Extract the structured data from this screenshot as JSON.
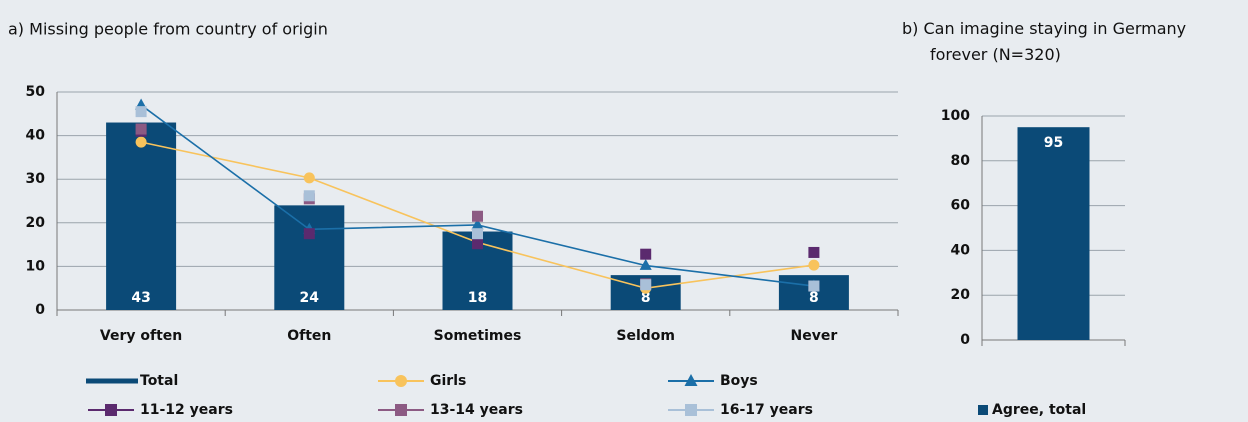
{
  "chart_data": [
    {
      "type": "bar-line",
      "title": "a) Missing people from country of origin",
      "categories": [
        "Very often",
        "Often",
        "Sometimes",
        "Seldom",
        "Never"
      ],
      "ylim": [
        0,
        50
      ],
      "yticks": [
        0,
        10,
        20,
        30,
        40,
        50
      ],
      "grid": true,
      "series": [
        {
          "name": "Total",
          "color": "#0b4a77",
          "style": "bar",
          "values": [
            43,
            24,
            18,
            8,
            8
          ]
        },
        {
          "name": "Girls",
          "color": "#f8c35c",
          "style": "line",
          "marker": "circle",
          "line": true,
          "values": [
            38.5,
            30.3,
            15.5,
            5,
            10.3
          ]
        },
        {
          "name": "Boys",
          "color": "#1b6fa8",
          "style": "line",
          "marker": "triangle",
          "line": true,
          "values": [
            47,
            18.5,
            19.5,
            10.2,
            5.5
          ]
        },
        {
          "name": "11-12 years",
          "color": "#5b2a6e",
          "style": "line",
          "marker": "square",
          "line": false,
          "values": [
            41,
            17.5,
            15.2,
            12.8,
            13.2
          ]
        },
        {
          "name": "13-14 years",
          "color": "#8c5a83",
          "style": "line",
          "marker": "square",
          "line": false,
          "values": [
            41.5,
            25.5,
            21.5,
            6,
            5.5
          ]
        },
        {
          "name": "16-17 years",
          "color": "#a9c0d8",
          "style": "line",
          "marker": "square",
          "line": false,
          "values": [
            45.5,
            26.2,
            17.5,
            5.8,
            5.5
          ]
        }
      ]
    },
    {
      "type": "bar",
      "title": "b) Can imagine staying in Germany forever (N=320)",
      "categories": [
        null
      ],
      "ylim": [
        0,
        100
      ],
      "yticks": [
        0,
        20,
        40,
        60,
        80,
        100
      ],
      "grid": true,
      "series": [
        {
          "name": "Agree, total",
          "color": "#0b4a77",
          "style": "bar",
          "values": [
            95
          ]
        }
      ]
    }
  ]
}
